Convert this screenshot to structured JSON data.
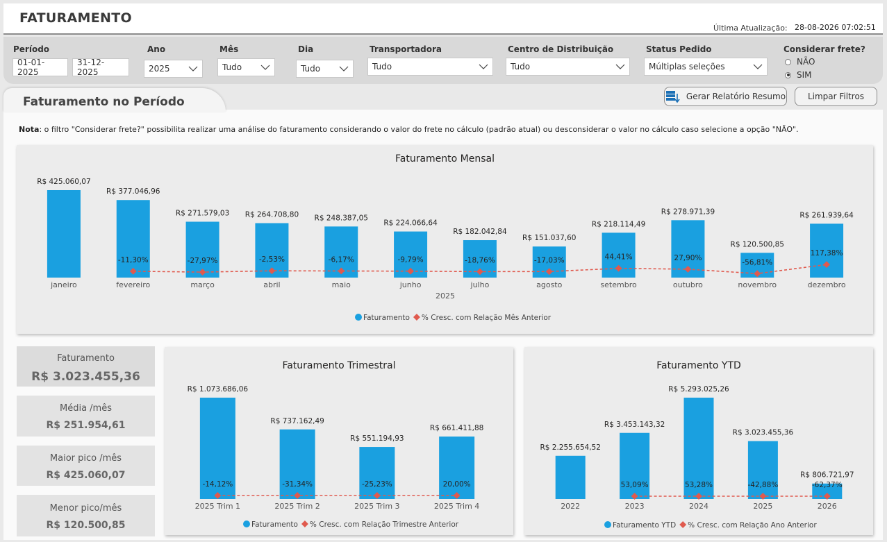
{
  "header": {
    "title": "FATURAMENTO",
    "last_update_label": "Última Atualização:",
    "last_update_value": "28-08-2026 07:02:51"
  },
  "filters": {
    "periodo": {
      "label": "Período",
      "start": "01-01-2025",
      "end": "31-12-2025"
    },
    "ano": {
      "label": "Ano",
      "value": "2025"
    },
    "mes": {
      "label": "Mês",
      "value": "Tudo"
    },
    "dia": {
      "label": "Dia",
      "value": "Tudo"
    },
    "transportadora": {
      "label": "Transportadora",
      "value": "Tudo"
    },
    "centro": {
      "label": "Centro de Distribuição",
      "value": "Tudo"
    },
    "status": {
      "label": "Status Pedido",
      "value": "Múltiplas seleções"
    },
    "frete": {
      "label": "Considerar frete?",
      "options": [
        "NÃO",
        "SIM"
      ],
      "selected": "SIM"
    }
  },
  "section_title": "Faturamento no Período",
  "buttons": {
    "report": "Gerar Relatório Resumo",
    "clear": "Limpar Filtros"
  },
  "note": {
    "bold": "Nota",
    "text": ": o filtro \"Considerar frete?\" possibilita realizar uma análise do faturamento considerando o valor do frete no cálculo (padrão atual) ou desconsiderar o valor no cálculo caso selecione a opção \"NÃO\"."
  },
  "kpis": [
    {
      "label": "Faturamento",
      "value": "R$ 3.023.455,36"
    },
    {
      "label": "Média /mês",
      "value": "R$ 251.954,61"
    },
    {
      "label": "Maior pico /mês",
      "value": "R$ 425.060,07"
    },
    {
      "label": "Menor pico/mês",
      "value": "R$ 120.500,85"
    }
  ],
  "colors": {
    "bar": "#1aa0e0",
    "line": "#e05a4e"
  },
  "chart_data": [
    {
      "type": "bar",
      "title": "Faturamento Mensal",
      "xlabel": "2025",
      "categories": [
        "janeiro",
        "fevereiro",
        "março",
        "abril",
        "maio",
        "junho",
        "julho",
        "agosto",
        "setembro",
        "outubro",
        "novembro",
        "dezembro"
      ],
      "series": [
        {
          "name": "Faturamento",
          "values": [
            425060.07,
            377046.96,
            271579.03,
            264708.8,
            248387.05,
            224066.64,
            182042.84,
            151037.6,
            218114.49,
            278971.39,
            120500.85,
            261939.64
          ]
        },
        {
          "name": "% Cresc. com Relação Mês Anterior",
          "values": [
            null,
            -11.3,
            -27.97,
            -2.53,
            -6.17,
            -9.79,
            -18.76,
            -17.03,
            44.41,
            27.9,
            -56.81,
            117.38
          ]
        }
      ],
      "bar_labels": [
        "R$ 425.060,07",
        "R$ 377.046,96",
        "R$ 271.579,03",
        "R$ 264.708,80",
        "R$ 248.387,05",
        "R$ 224.066,64",
        "R$ 182.042,84",
        "R$ 151.037,60",
        "R$ 218.114,49",
        "R$ 278.971,39",
        "R$ 120.500,85",
        "R$ 261.939,64"
      ],
      "pct_labels": [
        "",
        "-11,30%",
        "-27,97%",
        "-2,53%",
        "-6,17%",
        "-9,79%",
        "-18,76%",
        "-17,03%",
        "44,41%",
        "27,90%",
        "-56,81%",
        "117,38%"
      ],
      "legend": [
        "Faturamento",
        "% Cresc. com Relação Mês Anterior"
      ]
    },
    {
      "type": "bar",
      "title": "Faturamento Trimestral",
      "categories": [
        "2025 Trim 1",
        "2025 Trim 2",
        "2025 Trim 3",
        "2025 Trim 4"
      ],
      "series": [
        {
          "name": "Faturamento",
          "values": [
            1073686.06,
            737162.49,
            551194.93,
            661411.88
          ]
        },
        {
          "name": "% Cresc. com Relação Trimestre Anterior",
          "values": [
            -14.12,
            -31.34,
            -25.23,
            20.0
          ]
        }
      ],
      "bar_labels": [
        "R$ 1.073.686,06",
        "R$ 737.162,49",
        "R$ 551.194,93",
        "R$ 661.411,88"
      ],
      "pct_labels": [
        "-14,12%",
        "-31,34%",
        "-25,23%",
        "20,00%"
      ],
      "legend": [
        "Faturamento",
        "% Cresc. com Relação Trimestre Anterior"
      ]
    },
    {
      "type": "bar",
      "title": "Faturamento YTD",
      "categories": [
        "2022",
        "2023",
        "2024",
        "2025",
        "2026"
      ],
      "series": [
        {
          "name": "Faturamento YTD",
          "values": [
            2255654.52,
            3453143.32,
            5293025.26,
            3023455.36,
            806721.97
          ]
        },
        {
          "name": "% Cresc. com Relação Ano Anterior",
          "values": [
            null,
            53.09,
            53.28,
            -42.88,
            -62.37
          ]
        }
      ],
      "bar_labels": [
        "R$ 2.255.654,52",
        "R$ 3.453.143,32",
        "R$ 5.293.025,26",
        "R$ 3.023.455,36",
        "R$ 806.721,97"
      ],
      "pct_labels": [
        "",
        "53,09%",
        "53,28%",
        "-42,88%",
        "-62,37%"
      ],
      "legend": [
        "Faturamento YTD",
        "% Cresc. com Relação Ano Anterior"
      ]
    }
  ]
}
